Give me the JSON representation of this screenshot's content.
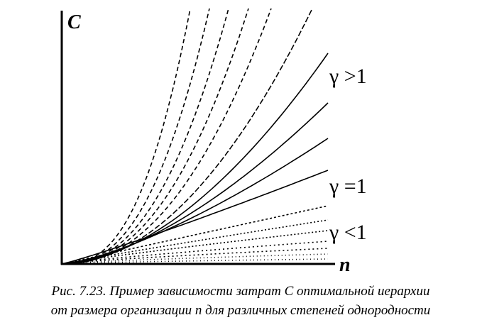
{
  "axes": {
    "y_label": "C",
    "x_label": "n"
  },
  "annotations": [
    "γ >1",
    "γ =1",
    "γ <1"
  ],
  "caption": [
    "Рис. 7.23. Пример зависимости затрат C оптимальной иерархии",
    "от размера организации n для различных степеней однородности"
  ]
}
